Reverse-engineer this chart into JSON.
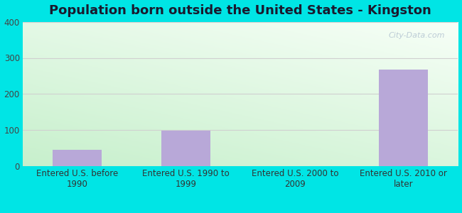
{
  "title": "Population born outside the United States - Kingston",
  "categories": [
    "Entered U.S. before\n1990",
    "Entered U.S. 1990 to\n1999",
    "Entered U.S. 2000 to\n2009",
    "Entered U.S. 2010 or\nlater"
  ],
  "values": [
    45,
    98,
    0,
    268
  ],
  "bar_color": "#b8a8d8",
  "ylim": [
    0,
    400
  ],
  "yticks": [
    0,
    100,
    200,
    300,
    400
  ],
  "background_color": "#00e5e5",
  "grad_top": "#f0faf0",
  "grad_left": "#d4f0d4",
  "grid_color": "#d0d0d0",
  "title_fontsize": 13,
  "tick_fontsize": 8.5,
  "watermark": "City-Data.com",
  "bar_width": 0.45
}
